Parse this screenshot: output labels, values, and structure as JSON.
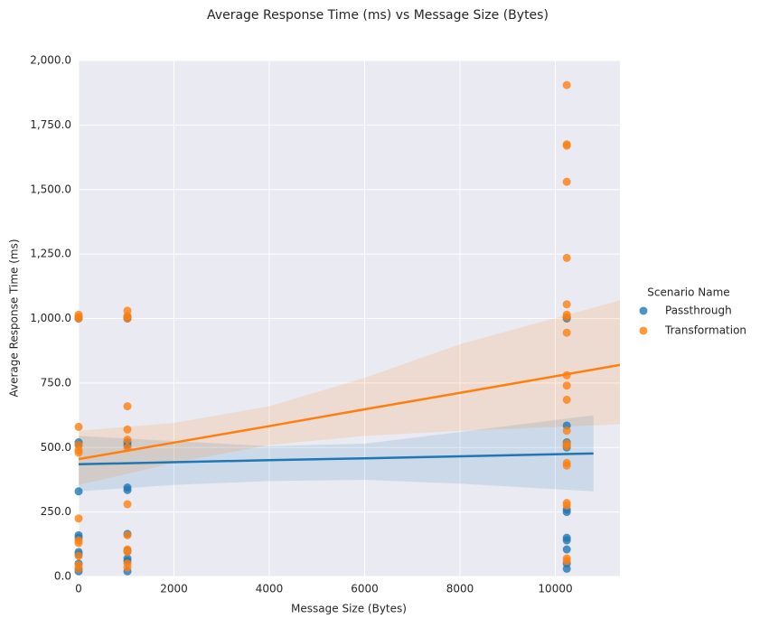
{
  "chart_data": {
    "type": "scatter",
    "title": "Average Response Time (ms) vs Message Size (Bytes)",
    "x_label": "Message Size (Bytes)",
    "y_label": "Average Response Time (ms)",
    "legend_title": "Scenario Name",
    "legend_position": "right",
    "grid": true,
    "xlim": [
      0,
      11355
    ],
    "ylim": [
      0,
      2000
    ],
    "xticks": [
      0,
      2000,
      4000,
      6000,
      8000,
      10000
    ],
    "yticks": [
      {
        "value": 0,
        "label": "0.0"
      },
      {
        "value": 250,
        "label": "250.0"
      },
      {
        "value": 500,
        "label": "500.0"
      },
      {
        "value": 750,
        "label": "750.0"
      },
      {
        "value": 1000,
        "label": "1,000.0"
      },
      {
        "value": 1250,
        "label": "1,250.0"
      },
      {
        "value": 1500,
        "label": "1,500.0"
      },
      {
        "value": 1750,
        "label": "1,750.0"
      },
      {
        "value": 2000,
        "label": "2,000.0"
      }
    ],
    "series": [
      {
        "name": "Passthrough",
        "color": "#1f77b4",
        "x": [
          0,
          0,
          0,
          0,
          0,
          0,
          0,
          0,
          0,
          0,
          0,
          0,
          1024,
          1024,
          1024,
          1024,
          1024,
          1024,
          1024,
          1024,
          1024,
          1024,
          1024,
          10240,
          10240,
          10240,
          10240,
          10240,
          10240,
          10240,
          10240,
          10240,
          10240,
          10240,
          10240,
          10240
        ],
        "values": [
          1000,
          1005,
          520,
          510,
          330,
          160,
          150,
          95,
          85,
          50,
          30,
          20,
          1000,
          1005,
          520,
          510,
          345,
          335,
          165,
          100,
          70,
          60,
          20,
          1005,
          1000,
          585,
          520,
          510,
          500,
          260,
          250,
          150,
          140,
          105,
          50,
          30
        ],
        "fit_x": [
          0,
          2000,
          4000,
          6000,
          8000,
          10800
        ],
        "fit_y": [
          435,
          443,
          451,
          458,
          466,
          477
        ],
        "ci_low": [
          330,
          355,
          370,
          375,
          360,
          330
        ],
        "ci_high": [
          545,
          525,
          505,
          515,
          560,
          625
        ]
      },
      {
        "name": "Transformation",
        "color": "#ff7f0e",
        "x": [
          0,
          0,
          0,
          0,
          0,
          0,
          0,
          0,
          0,
          0,
          0,
          0,
          0,
          1024,
          1024,
          1024,
          1024,
          1024,
          1024,
          1024,
          1024,
          1024,
          1024,
          1024,
          1024,
          1024,
          10240,
          10240,
          10240,
          10240,
          10240,
          10240,
          10240,
          10240,
          10240,
          10240,
          10240,
          10240,
          10240,
          10240,
          10240,
          10240,
          10240,
          10240,
          10240,
          10240,
          10240
        ],
        "values": [
          1015,
          1005,
          1000,
          580,
          510,
          490,
          480,
          225,
          140,
          130,
          80,
          45,
          30,
          1030,
          1010,
          1000,
          660,
          570,
          530,
          500,
          280,
          160,
          105,
          95,
          50,
          35,
          1905,
          1675,
          1670,
          1530,
          1235,
          1055,
          1015,
          1005,
          945,
          780,
          740,
          685,
          565,
          515,
          505,
          440,
          430,
          285,
          275,
          70,
          60
        ],
        "fit_x": [
          0,
          2000,
          4000,
          6000,
          8000,
          11355
        ],
        "fit_y": [
          455,
          519,
          583,
          648,
          712,
          820
        ],
        "ci_low": [
          355,
          440,
          510,
          545,
          565,
          590
        ],
        "ci_high": [
          565,
          595,
          660,
          770,
          900,
          1070
        ]
      }
    ]
  }
}
